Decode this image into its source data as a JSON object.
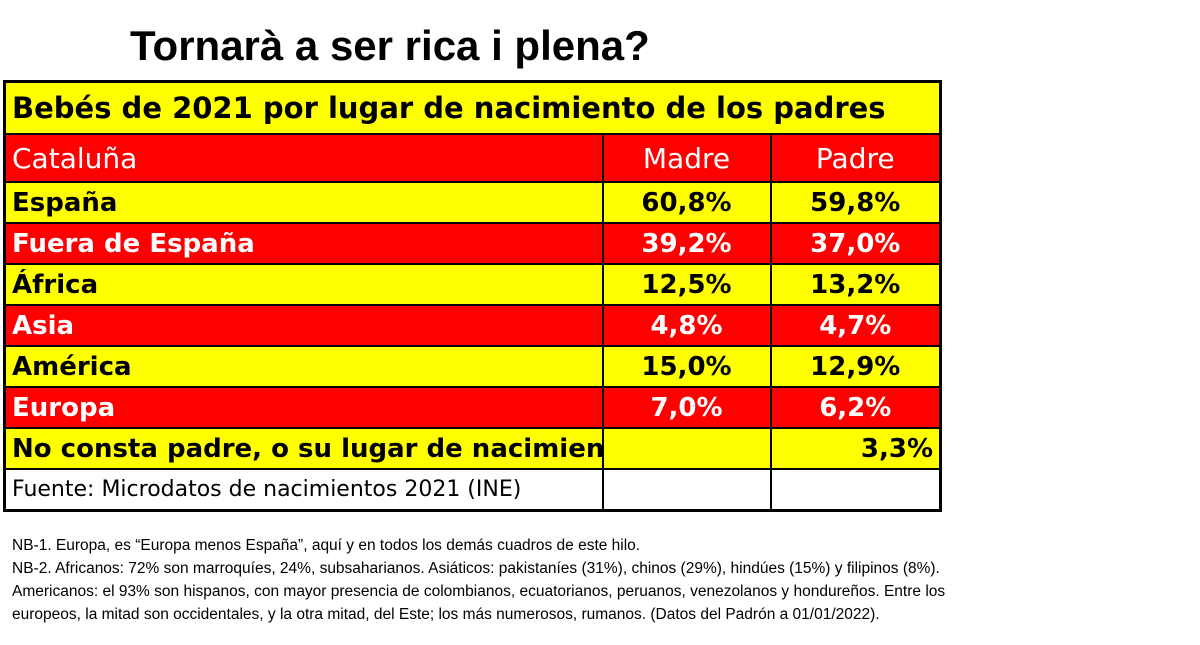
{
  "title": "Tornarà a ser rica i plena?",
  "table": {
    "caption": "Bebés de 2021 por lugar de nacimiento de los padres",
    "header": {
      "region": "Cataluña",
      "madre": "Madre",
      "padre": "Padre"
    },
    "rows": [
      {
        "label": "España",
        "madre": "60,8%",
        "padre": "59,8%",
        "color": "yellow"
      },
      {
        "label": "Fuera de España",
        "madre": "39,2%",
        "padre": "37,0%",
        "color": "red"
      },
      {
        "label": "África",
        "madre": "12,5%",
        "padre": "13,2%",
        "color": "yellow"
      },
      {
        "label": "Asia",
        "madre": "4,8%",
        "padre": "4,7%",
        "color": "red"
      },
      {
        "label": "América",
        "madre": "15,0%",
        "padre": "12,9%",
        "color": "yellow"
      },
      {
        "label": "Europa",
        "madre": "7,0%",
        "padre": "6,2%",
        "color": "red"
      },
      {
        "label": "No consta padre, o su lugar de nacimiento",
        "madre": "",
        "padre": "3,3%",
        "color": "yellow"
      }
    ],
    "source": "Fuente: Microdatos de nacimientos 2021 (INE)"
  },
  "notes": [
    "NB-1. Europa, es “Europa menos España”, aquí y en todos los demás cuadros de este hilo.",
    "NB-2. Africanos: 72% son marroquíes, 24%, subsaharianos.  Asiáticos: pakistaníes (31%), chinos (29%), hindúes (15%) y filipinos (8%).",
    "Americanos: el 93% son hispanos, con mayor presencia de colombianos, ecuatorianos, peruanos, venezolanos y hondureños.  Entre los",
    "europeos,  la mitad son occidentales, y la otra mitad, del Este; los más numerosos, rumanos.  (Datos del Padrón a 01/01/2022)."
  ],
  "colors": {
    "yellow": "#ffff00",
    "red": "#ff0000"
  }
}
